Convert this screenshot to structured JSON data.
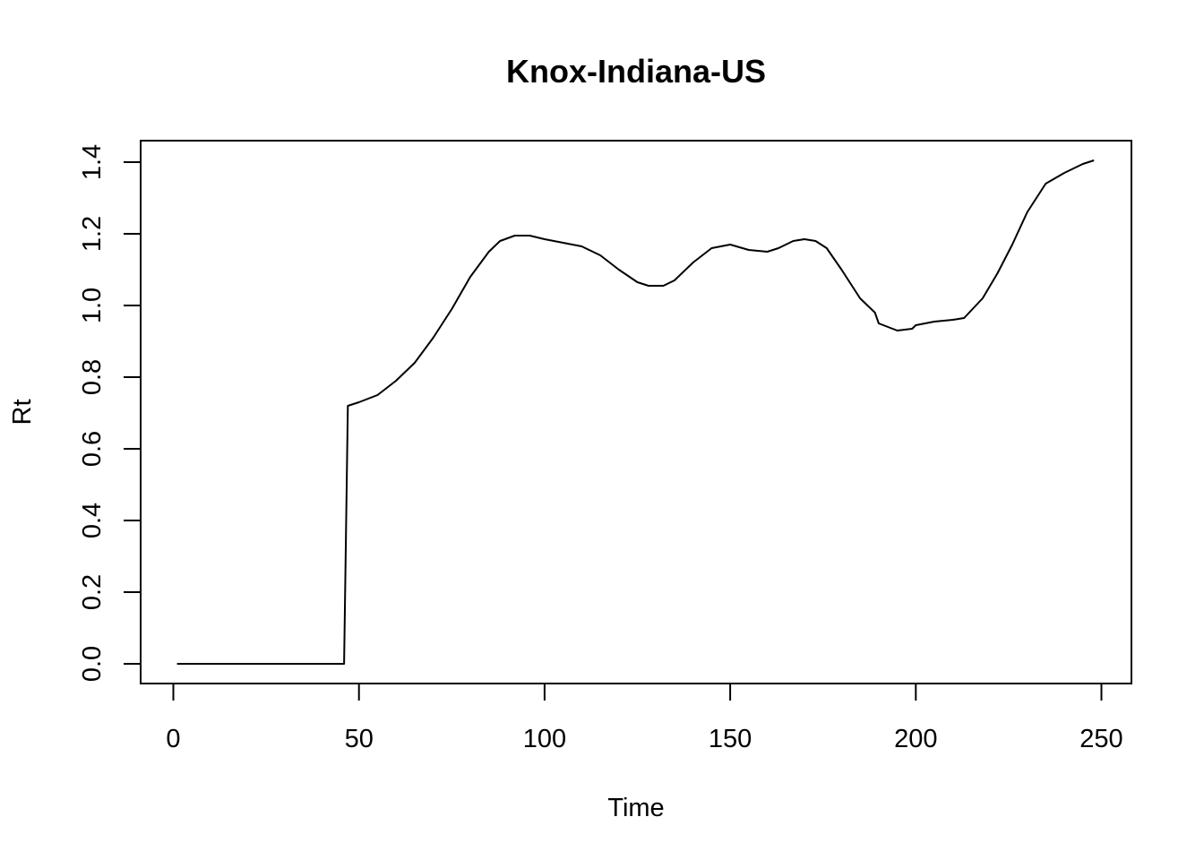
{
  "chart_data": {
    "type": "line",
    "title": "Knox-Indiana-US",
    "xlabel": "Time",
    "ylabel": "Rt",
    "xlim": [
      1,
      248
    ],
    "ylim": [
      0.0,
      1.4
    ],
    "x_ticks": [
      0,
      50,
      100,
      150,
      200,
      250
    ],
    "y_ticks": [
      0.0,
      0.2,
      0.4,
      0.6,
      0.8,
      1.0,
      1.2,
      1.4
    ],
    "x_tick_labels": [
      "0",
      "50",
      "100",
      "150",
      "200",
      "250"
    ],
    "y_tick_labels": [
      "0.0",
      "0.2",
      "0.4",
      "0.6",
      "0.8",
      "1.0",
      "1.2",
      "1.4"
    ],
    "grid": false,
    "legend": "none",
    "line_color": "#000000",
    "series": [
      {
        "x": [
          1,
          10,
          20,
          30,
          40,
          46,
          47,
          50,
          55,
          60,
          65,
          70,
          75,
          80,
          85,
          88,
          92,
          96,
          100,
          105,
          110,
          115,
          120,
          125,
          128,
          132,
          135,
          140,
          145,
          150,
          155,
          160,
          163,
          167,
          170,
          173,
          176,
          180,
          185,
          189,
          190,
          195,
          199,
          200,
          205,
          210,
          213,
          218,
          222,
          226,
          230,
          235,
          240,
          245,
          248
        ],
        "y": [
          0.0,
          0.0,
          0.0,
          0.0,
          0.0,
          0.0,
          0.72,
          0.73,
          0.75,
          0.79,
          0.84,
          0.91,
          0.99,
          1.08,
          1.15,
          1.18,
          1.195,
          1.195,
          1.185,
          1.175,
          1.165,
          1.14,
          1.1,
          1.065,
          1.055,
          1.055,
          1.07,
          1.12,
          1.16,
          1.17,
          1.155,
          1.15,
          1.16,
          1.18,
          1.185,
          1.18,
          1.16,
          1.1,
          1.02,
          0.98,
          0.95,
          0.93,
          0.935,
          0.945,
          0.955,
          0.96,
          0.965,
          1.02,
          1.09,
          1.17,
          1.26,
          1.34,
          1.37,
          1.395,
          1.405
        ]
      }
    ]
  }
}
